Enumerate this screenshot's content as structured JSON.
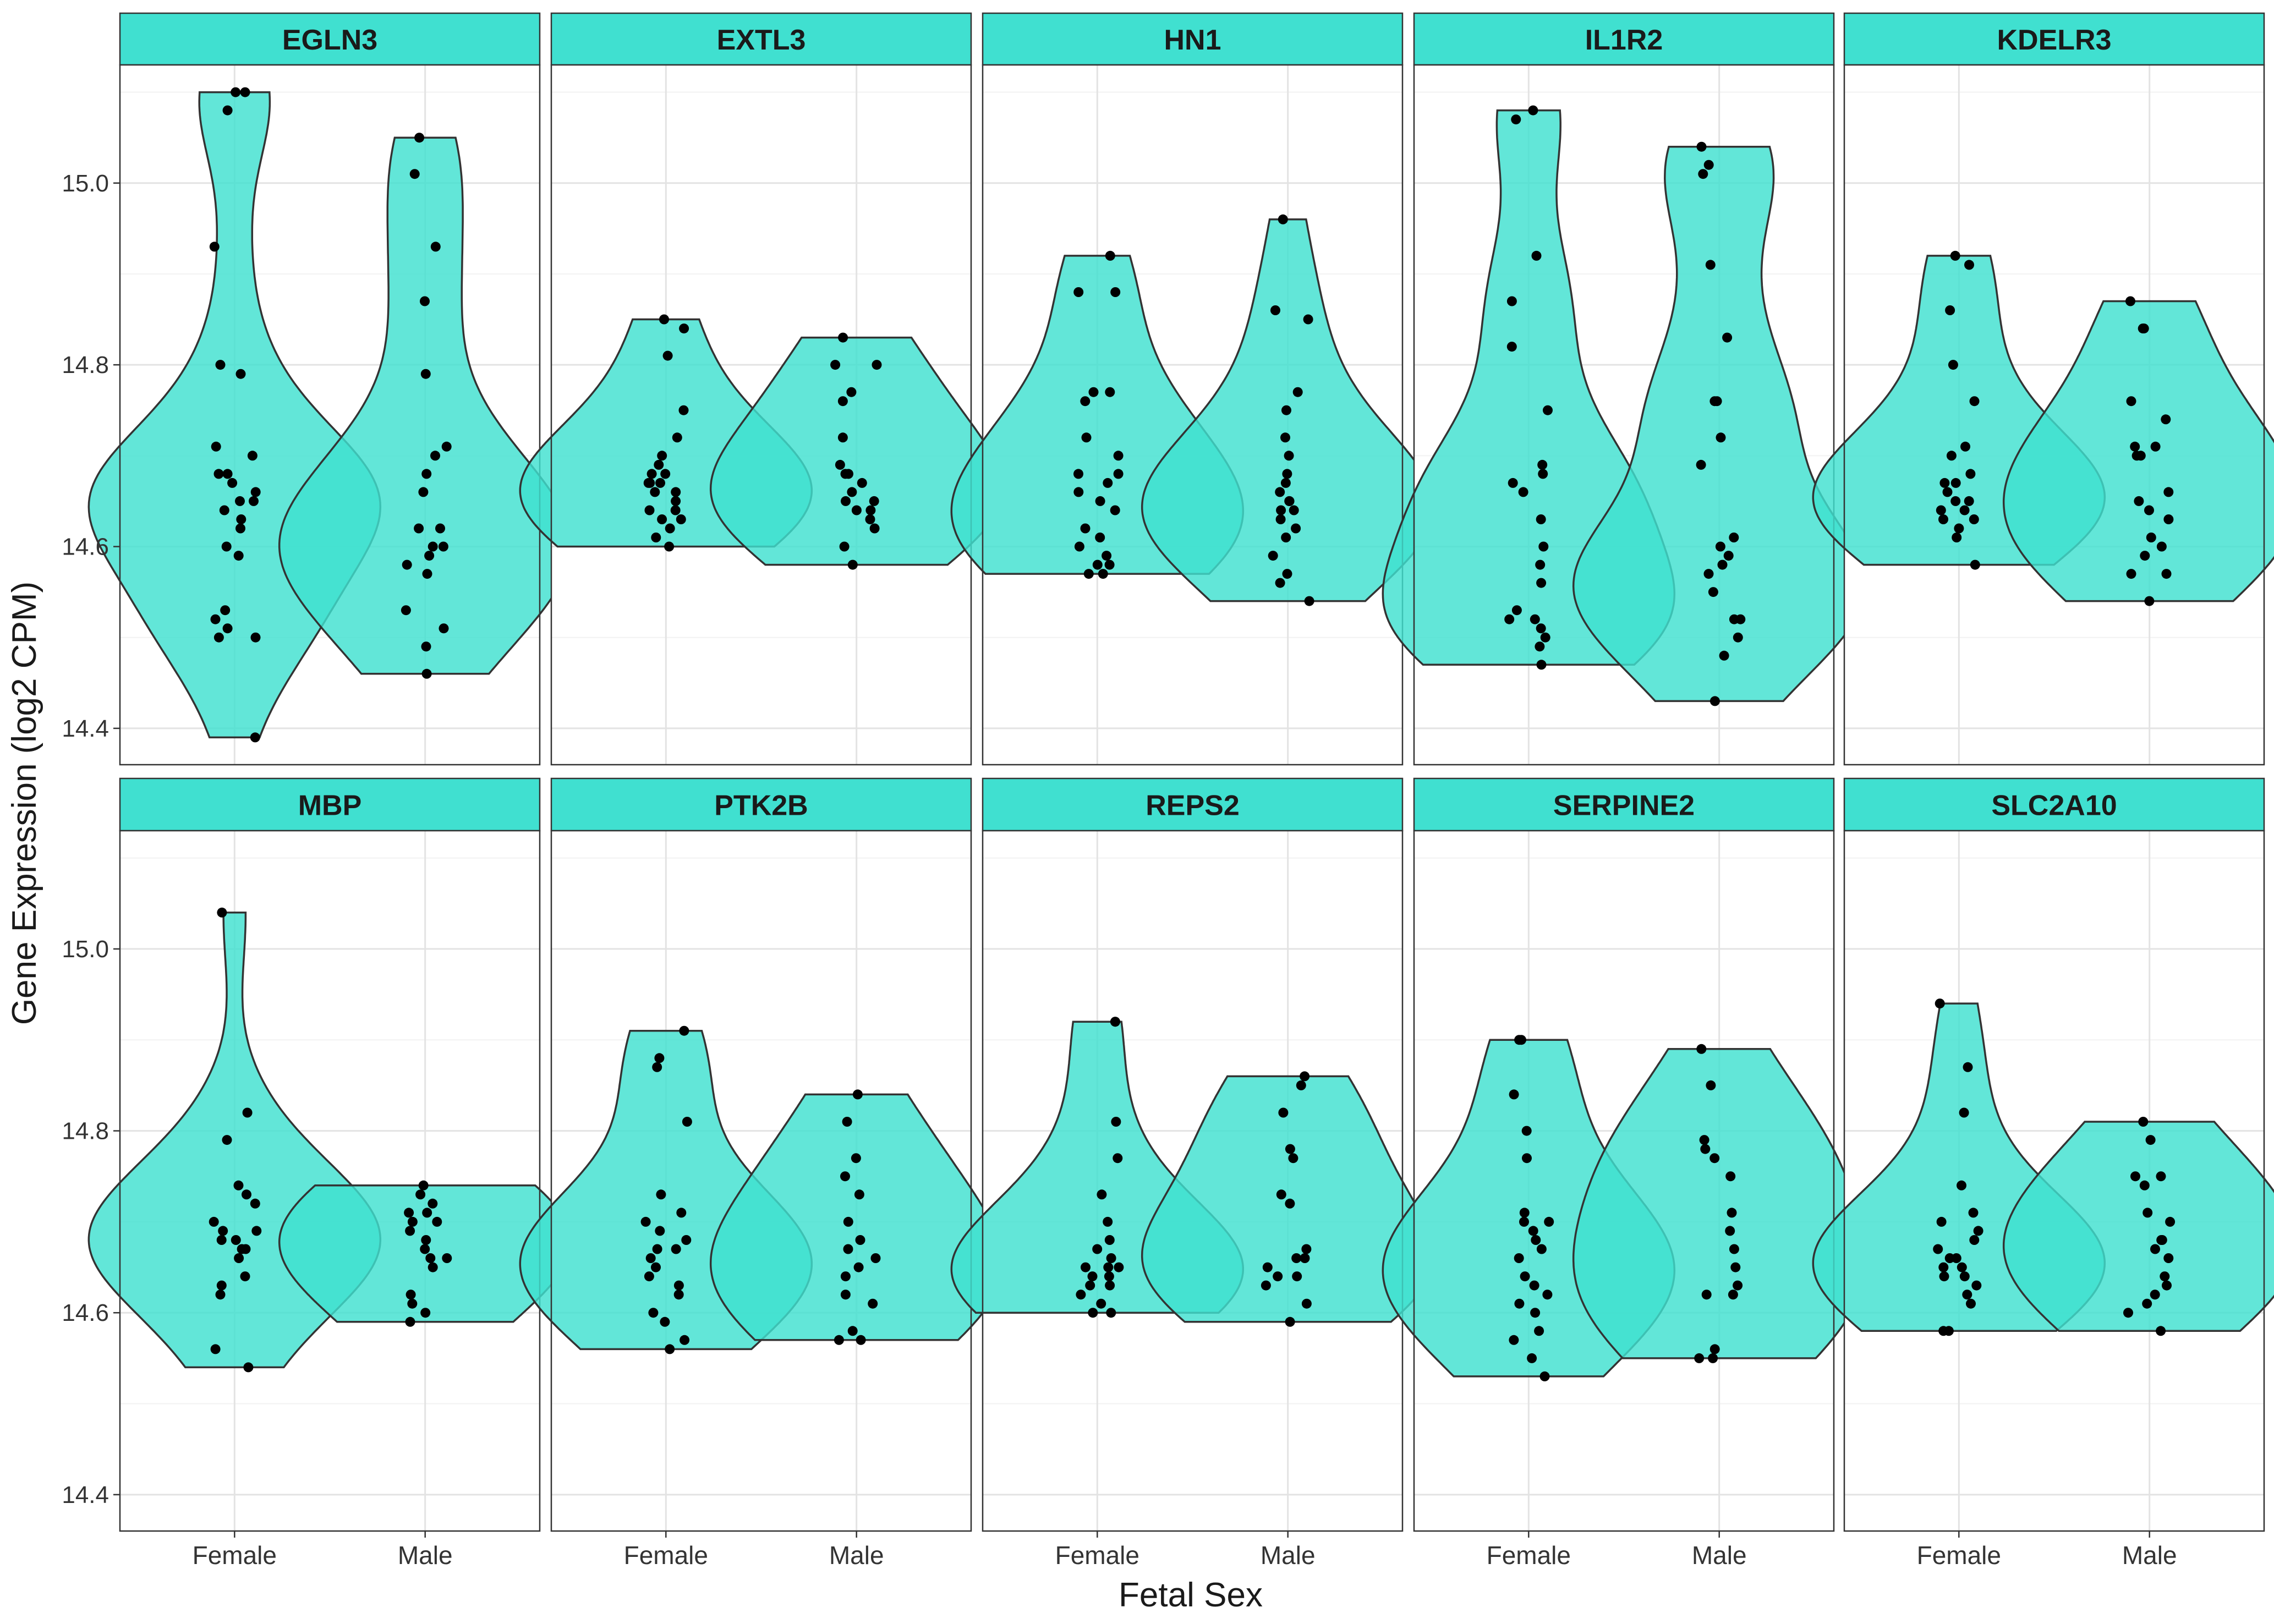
{
  "chart_data": {
    "type": "violin",
    "xlabel": "Fetal Sex",
    "ylabel": "Gene Expression (log2 CPM)",
    "categories": [
      "Female",
      "Male"
    ],
    "ylim": [
      14.36,
      15.13
    ],
    "yticks": [
      "14.4",
      "14.6",
      "14.8",
      "15.0"
    ],
    "grid": true,
    "layout": "facets 2 rows x 5 columns",
    "fill_color": "#40E0D0",
    "strip_color": "#40E0D0",
    "point_color": "#000000",
    "panels": [
      {
        "title": "EGLN3",
        "female": [
          15.1,
          15.1,
          15.08,
          14.93,
          14.8,
          14.79,
          14.71,
          14.7,
          14.68,
          14.68,
          14.67,
          14.66,
          14.65,
          14.65,
          14.64,
          14.63,
          14.62,
          14.6,
          14.59,
          14.53,
          14.52,
          14.51,
          14.5,
          14.5,
          14.39
        ],
        "male": [
          15.05,
          15.01,
          14.93,
          14.87,
          14.79,
          14.71,
          14.7,
          14.68,
          14.66,
          14.62,
          14.62,
          14.6,
          14.6,
          14.59,
          14.58,
          14.57,
          14.53,
          14.51,
          14.49,
          14.46
        ]
      },
      {
        "title": "EXTL3",
        "female": [
          14.85,
          14.84,
          14.81,
          14.75,
          14.72,
          14.7,
          14.69,
          14.68,
          14.68,
          14.67,
          14.67,
          14.67,
          14.66,
          14.66,
          14.65,
          14.64,
          14.64,
          14.63,
          14.63,
          14.62,
          14.61,
          14.6
        ],
        "male": [
          14.83,
          14.8,
          14.8,
          14.77,
          14.76,
          14.72,
          14.69,
          14.68,
          14.68,
          14.67,
          14.66,
          14.65,
          14.65,
          14.64,
          14.64,
          14.63,
          14.62,
          14.6,
          14.58
        ]
      },
      {
        "title": "HN1",
        "female": [
          14.92,
          14.88,
          14.88,
          14.77,
          14.77,
          14.76,
          14.72,
          14.7,
          14.68,
          14.68,
          14.67,
          14.66,
          14.65,
          14.64,
          14.62,
          14.61,
          14.6,
          14.59,
          14.58,
          14.58,
          14.57,
          14.57
        ],
        "male": [
          14.96,
          14.86,
          14.85,
          14.77,
          14.75,
          14.72,
          14.7,
          14.68,
          14.67,
          14.66,
          14.65,
          14.65,
          14.64,
          14.64,
          14.63,
          14.62,
          14.61,
          14.59,
          14.57,
          14.56,
          14.54
        ]
      },
      {
        "title": "IL1R2",
        "female": [
          15.08,
          15.07,
          14.92,
          14.87,
          14.82,
          14.75,
          14.69,
          14.68,
          14.67,
          14.66,
          14.63,
          14.6,
          14.58,
          14.56,
          14.53,
          14.52,
          14.52,
          14.51,
          14.5,
          14.49,
          14.47
        ],
        "male": [
          15.04,
          15.02,
          15.01,
          14.91,
          14.83,
          14.76,
          14.76,
          14.72,
          14.69,
          14.61,
          14.6,
          14.59,
          14.58,
          14.57,
          14.55,
          14.52,
          14.52,
          14.5,
          14.48,
          14.43
        ]
      },
      {
        "title": "KDELR3",
        "female": [
          14.92,
          14.91,
          14.86,
          14.8,
          14.76,
          14.71,
          14.7,
          14.68,
          14.67,
          14.67,
          14.66,
          14.65,
          14.65,
          14.64,
          14.64,
          14.63,
          14.63,
          14.62,
          14.61,
          14.58
        ],
        "male": [
          14.87,
          14.84,
          14.84,
          14.76,
          14.74,
          14.71,
          14.71,
          14.7,
          14.7,
          14.66,
          14.65,
          14.64,
          14.63,
          14.61,
          14.6,
          14.59,
          14.57,
          14.57,
          14.54
        ]
      },
      {
        "title": "MBP",
        "female": [
          15.04,
          14.82,
          14.79,
          14.74,
          14.73,
          14.72,
          14.7,
          14.69,
          14.69,
          14.68,
          14.68,
          14.67,
          14.67,
          14.66,
          14.64,
          14.63,
          14.62,
          14.56,
          14.54
        ],
        "male": [
          14.74,
          14.73,
          14.72,
          14.71,
          14.71,
          14.7,
          14.7,
          14.69,
          14.68,
          14.67,
          14.66,
          14.66,
          14.65,
          14.62,
          14.61,
          14.6,
          14.59
        ]
      },
      {
        "title": "PTK2B",
        "female": [
          14.91,
          14.88,
          14.87,
          14.81,
          14.73,
          14.71,
          14.7,
          14.69,
          14.68,
          14.67,
          14.67,
          14.66,
          14.65,
          14.64,
          14.63,
          14.62,
          14.6,
          14.59,
          14.57,
          14.56
        ],
        "male": [
          14.84,
          14.81,
          14.77,
          14.75,
          14.73,
          14.7,
          14.68,
          14.67,
          14.66,
          14.65,
          14.64,
          14.62,
          14.61,
          14.58,
          14.57,
          14.57
        ]
      },
      {
        "title": "REPS2",
        "female": [
          14.92,
          14.92,
          14.81,
          14.77,
          14.73,
          14.7,
          14.68,
          14.67,
          14.66,
          14.65,
          14.65,
          14.65,
          14.64,
          14.64,
          14.63,
          14.63,
          14.62,
          14.61,
          14.6,
          14.6
        ],
        "male": [
          14.86,
          14.85,
          14.82,
          14.78,
          14.77,
          14.73,
          14.72,
          14.67,
          14.66,
          14.66,
          14.65,
          14.64,
          14.64,
          14.63,
          14.61,
          14.59
        ]
      },
      {
        "title": "SERPINE2",
        "female": [
          14.9,
          14.9,
          14.84,
          14.8,
          14.77,
          14.71,
          14.7,
          14.7,
          14.69,
          14.68,
          14.67,
          14.66,
          14.64,
          14.63,
          14.62,
          14.61,
          14.6,
          14.58,
          14.57,
          14.55,
          14.53
        ],
        "male": [
          14.89,
          14.85,
          14.79,
          14.78,
          14.77,
          14.75,
          14.71,
          14.69,
          14.67,
          14.65,
          14.63,
          14.62,
          14.62,
          14.56,
          14.55,
          14.55
        ]
      },
      {
        "title": "SLC2A10",
        "female": [
          14.94,
          14.87,
          14.82,
          14.74,
          14.71,
          14.7,
          14.69,
          14.68,
          14.67,
          14.66,
          14.66,
          14.65,
          14.65,
          14.64,
          14.64,
          14.63,
          14.62,
          14.61,
          14.58,
          14.58
        ],
        "male": [
          14.81,
          14.79,
          14.75,
          14.75,
          14.74,
          14.71,
          14.7,
          14.68,
          14.68,
          14.67,
          14.66,
          14.64,
          14.63,
          14.62,
          14.61,
          14.6,
          14.58
        ]
      }
    ]
  }
}
